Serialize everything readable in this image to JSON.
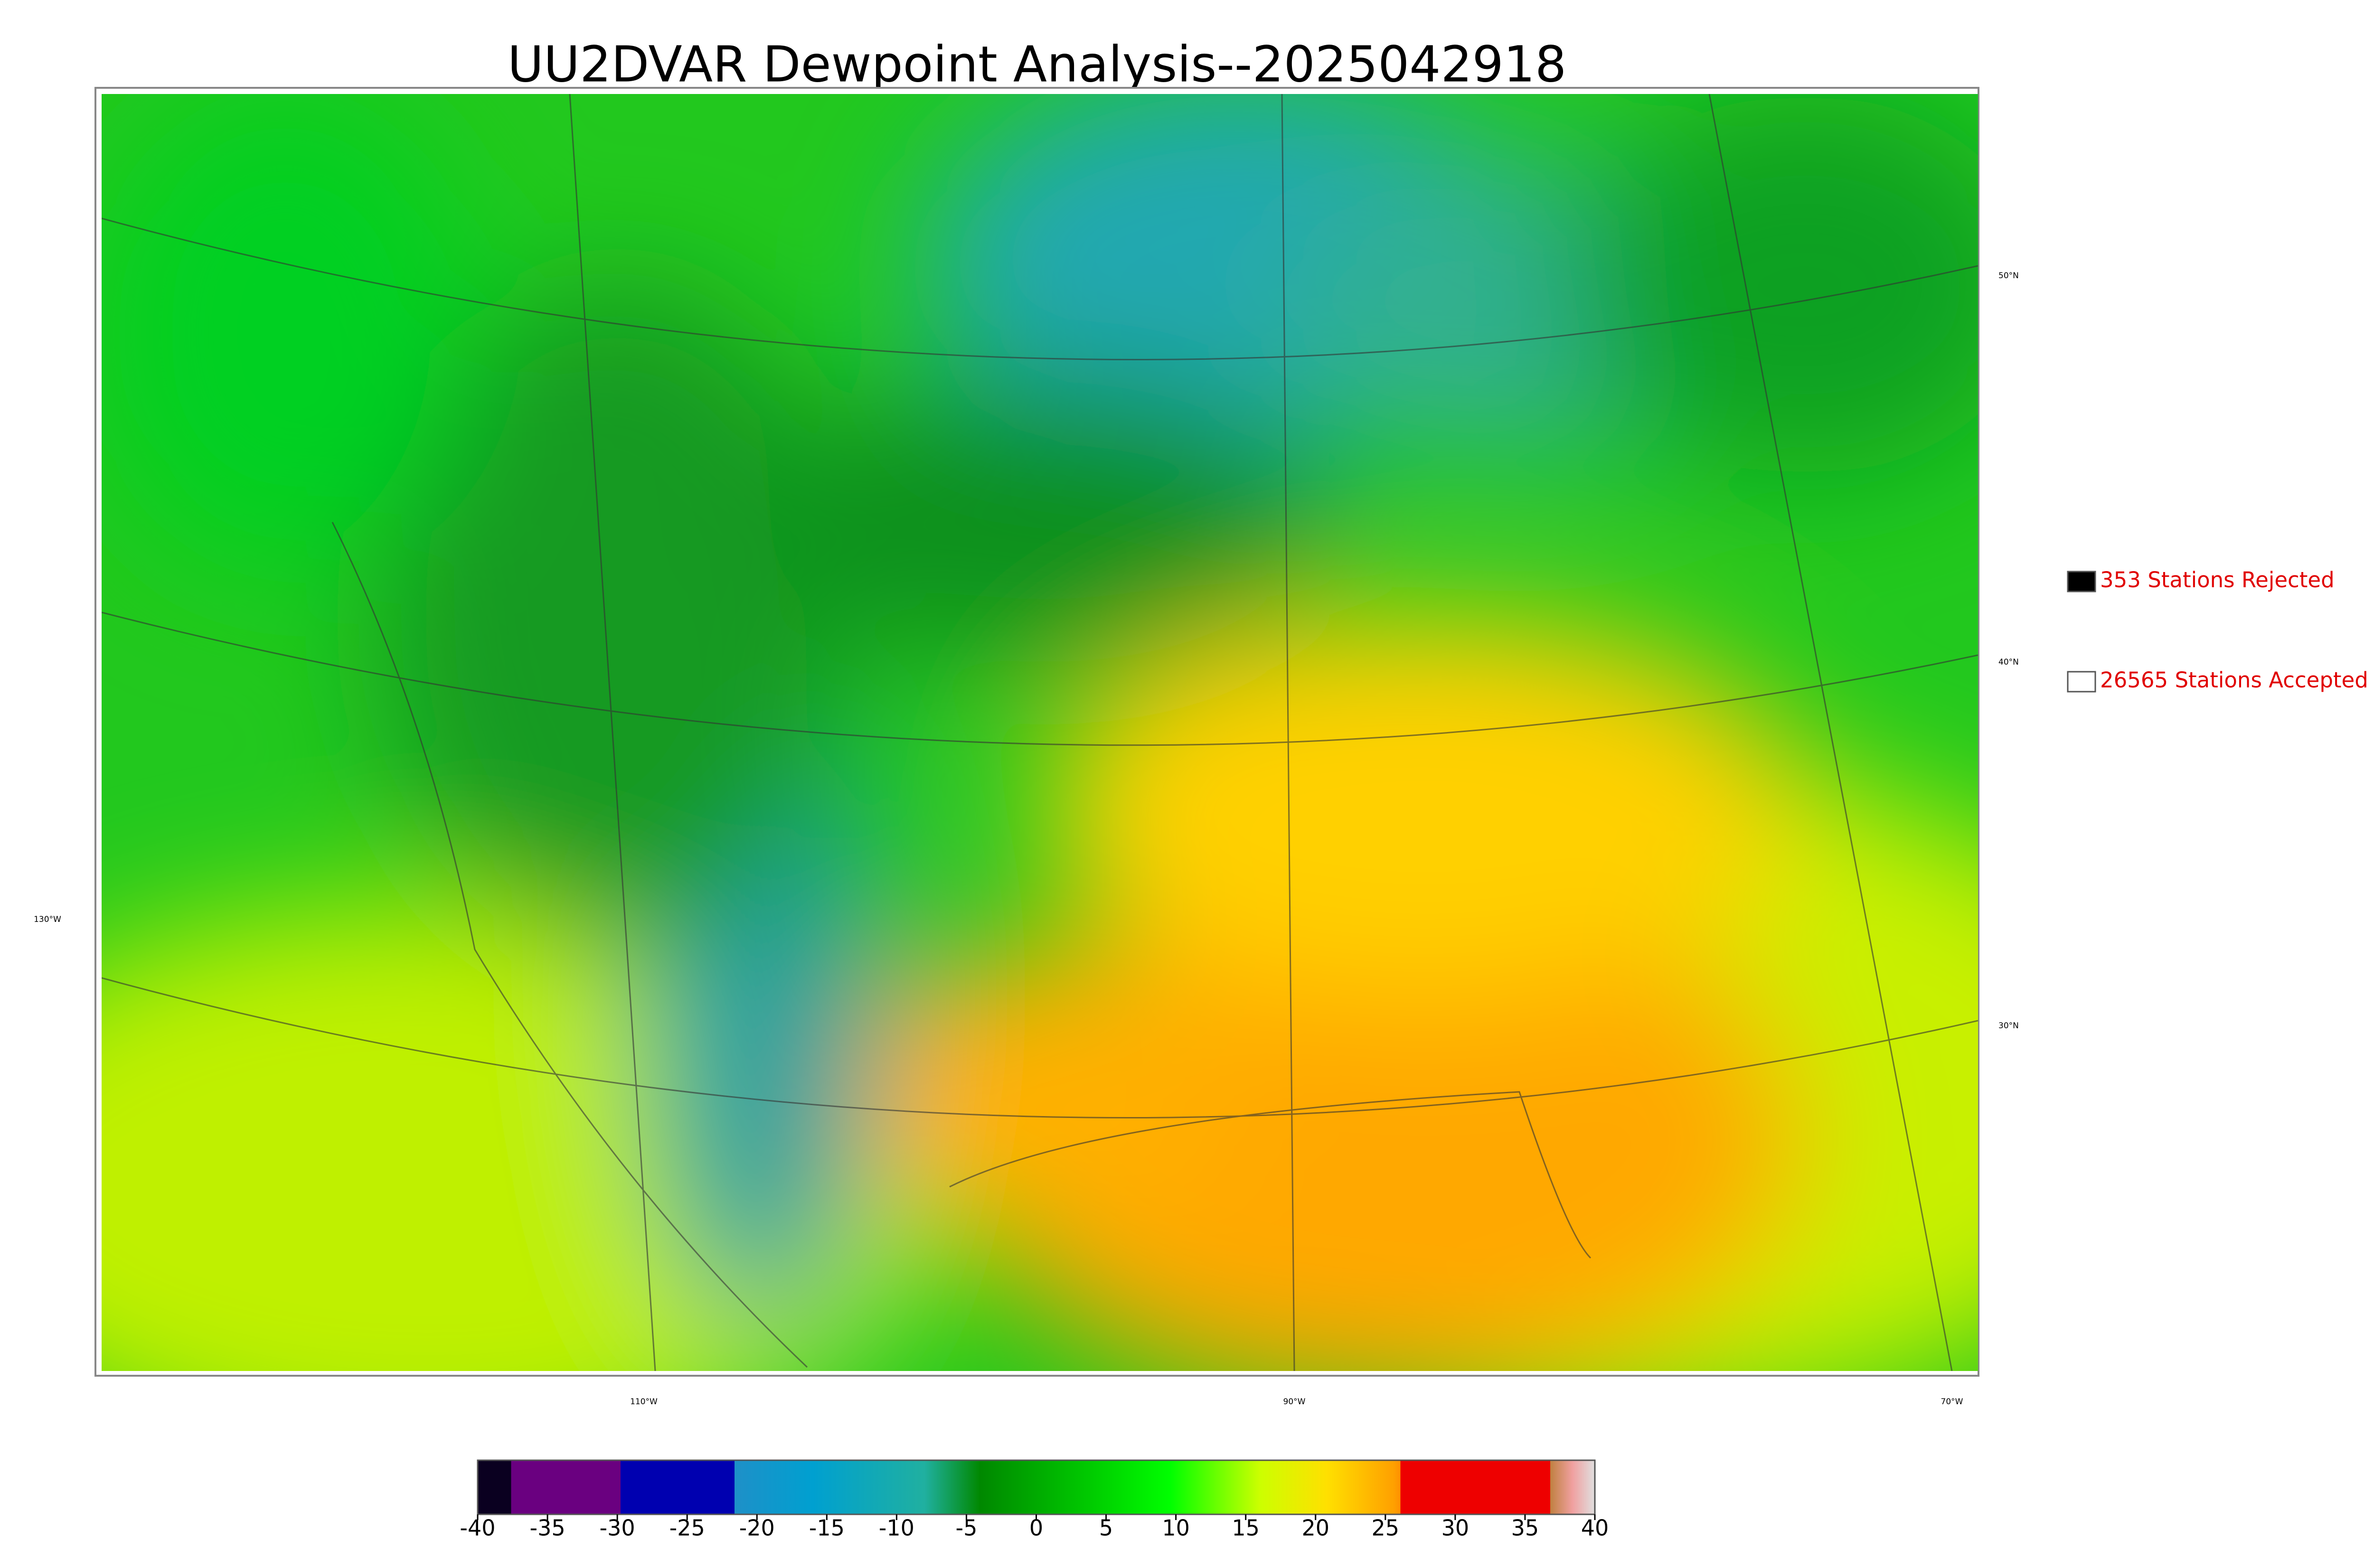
{
  "title": "UU2DVAR Dewpoint Analysis--2025042918",
  "map": {
    "lat_labels": [
      "50°N",
      "40°N",
      "30°N"
    ],
    "lon_labels": [
      "130°W",
      "110°W",
      "90°W",
      "70°W"
    ]
  },
  "legend": [
    {
      "label": "353 Stations Rejected",
      "color": "#000000"
    },
    {
      "label": "26565 Stations Accepted",
      "color": "#ffffff"
    }
  ],
  "colorbar": {
    "lim": [
      -40,
      40
    ],
    "ticks": [
      -40,
      -35,
      -30,
      -25,
      -20,
      -15,
      -10,
      -5,
      0,
      5,
      10,
      15,
      20,
      25,
      30,
      35,
      40
    ]
  }
}
